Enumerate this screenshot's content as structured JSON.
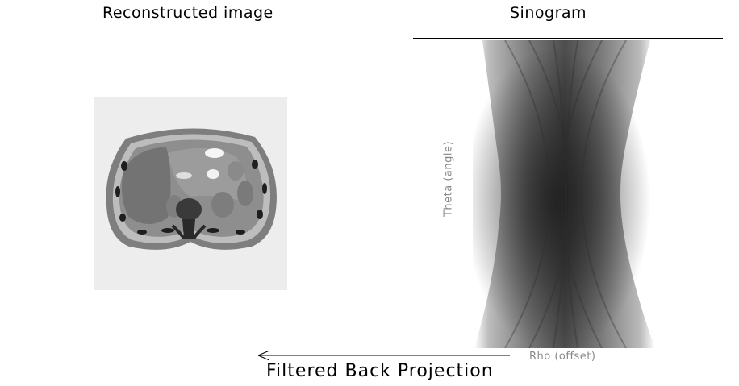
{
  "panels": {
    "reconstructed_title": "Reconstructed image",
    "sinogram_title": "Sinogram"
  },
  "sinogram": {
    "theta_label": "Theta (angle)",
    "rho_label": "Rho (offset)"
  },
  "process": {
    "label": "Filtered Back Projection",
    "arrow_direction": "left"
  }
}
